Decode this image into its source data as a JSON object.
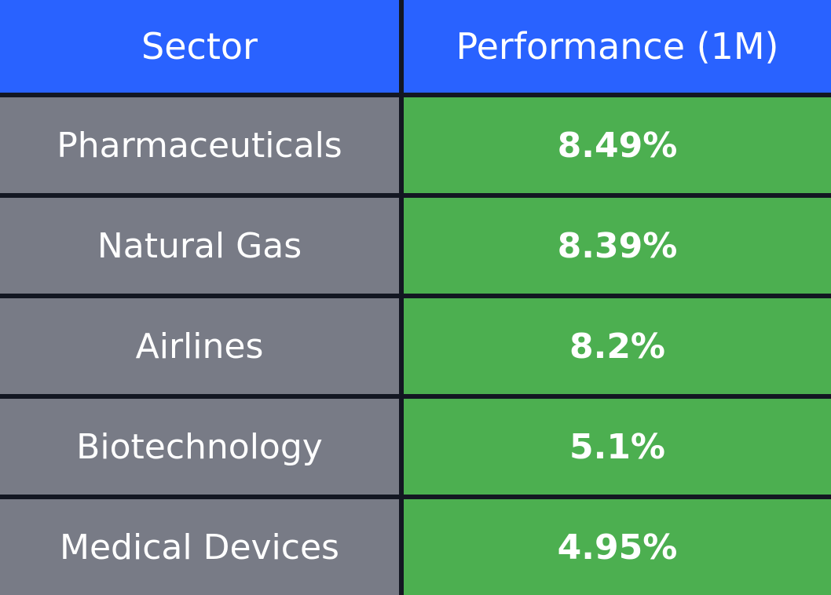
{
  "table": {
    "columns": [
      "Sector",
      "Performance (1M)"
    ],
    "rows": [
      [
        "Pharmaceuticals",
        "8.49%"
      ],
      [
        "Natural Gas",
        "8.39%"
      ],
      [
        "Airlines",
        "8.2%"
      ],
      [
        "Biotechnology",
        "5.1%"
      ],
      [
        "Medical Devices",
        "4.95%"
      ]
    ]
  }
}
